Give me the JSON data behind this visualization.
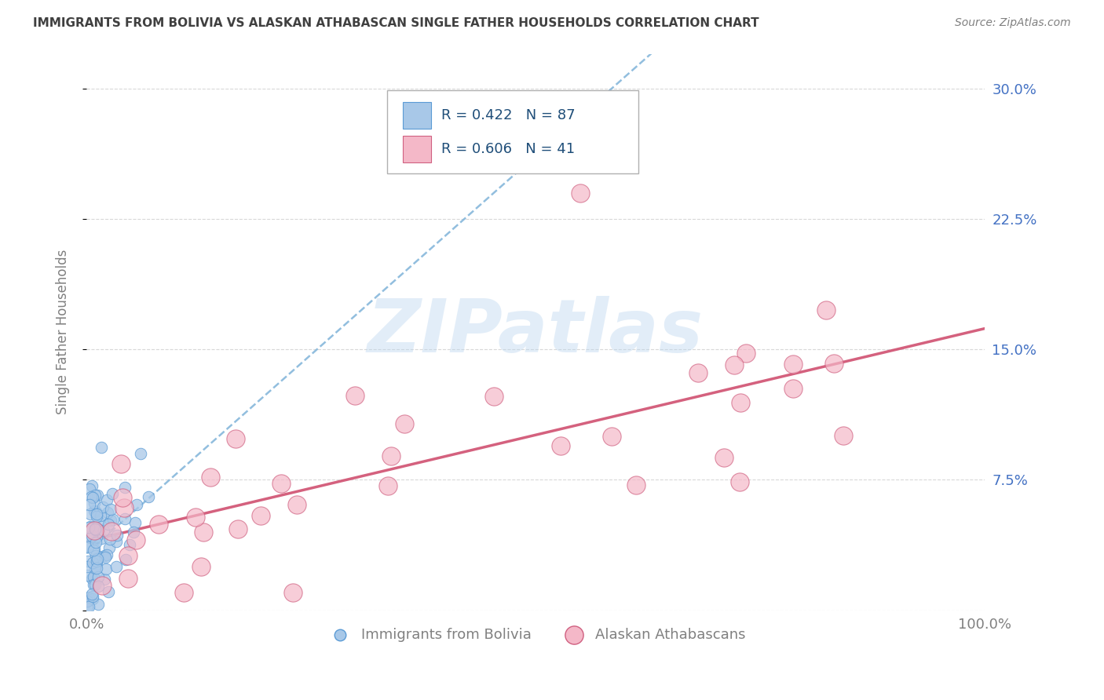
{
  "title": "IMMIGRANTS FROM BOLIVIA VS ALASKAN ATHABASCAN SINGLE FATHER HOUSEHOLDS CORRELATION CHART",
  "source": "Source: ZipAtlas.com",
  "ylabel": "Single Father Households",
  "xlim": [
    0.0,
    1.0
  ],
  "ylim": [
    0.0,
    0.32
  ],
  "yticks": [
    0.0,
    0.075,
    0.15,
    0.225,
    0.3
  ],
  "ytick_labels": [
    "",
    "7.5%",
    "15.0%",
    "22.5%",
    "30.0%"
  ],
  "xtick_labels": [
    "0.0%",
    "100.0%"
  ],
  "bolivia_color": "#a8c8e8",
  "bolivia_edge": "#5b9bd5",
  "athabascan_color": "#f4b8c8",
  "athabascan_edge": "#d06080",
  "trendline_bolivia_color": "#7fb3d9",
  "trendline_athabascan_color": "#d05070",
  "watermark_text": "ZIPatlas",
  "background_color": "#ffffff",
  "title_color": "#404040",
  "axis_label_color": "#808080",
  "grid_color": "#c8c8c8",
  "tick_color_right": "#4472c4",
  "legend_box_edge": "#b0b0b0",
  "legend_text_color": "#1f4e79",
  "legend_N_color": "#c00000"
}
